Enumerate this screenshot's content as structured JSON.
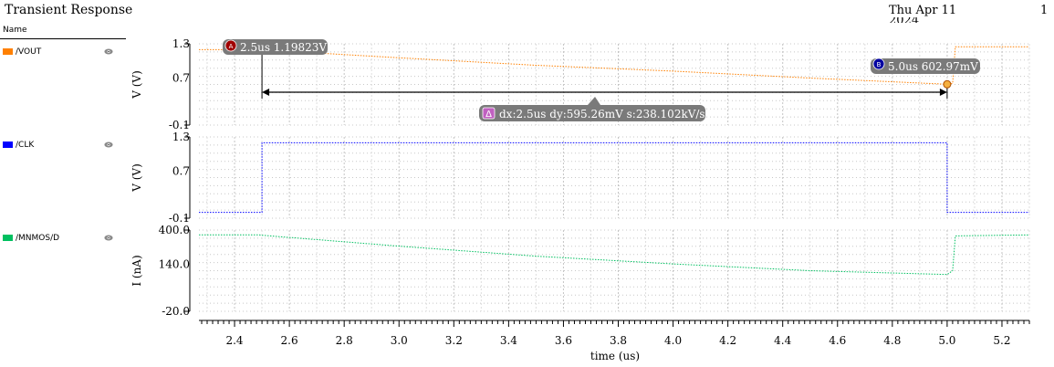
{
  "header": {
    "title": "Transient Response",
    "datetime": "Thu Apr 11 13:14:00",
    "datetime_line2": "2024",
    "page": "1"
  },
  "legend": {
    "header": "Name",
    "icon": "eye-icon",
    "items": [
      {
        "label": "/VOUT",
        "color": "#ff8000"
      },
      {
        "label": "/CLK",
        "color": "#0000ff"
      },
      {
        "label": "/MNMOS/D",
        "color": "#00c060"
      }
    ]
  },
  "chart_data": {
    "type": "line",
    "xlabel": "time (us)",
    "xlim": [
      2.27,
      5.3
    ],
    "x_ticks": [
      "2.4",
      "2.6",
      "2.8",
      "3.0",
      "3.2",
      "3.4",
      "3.6",
      "3.8",
      "4.0",
      "4.2",
      "4.4",
      "4.6",
      "4.8",
      "5.0",
      "5.2"
    ],
    "panels": [
      {
        "name": "/VOUT",
        "color": "#ff8000",
        "ylabel": "V (V)",
        "ylim": [
          -0.1,
          1.3
        ],
        "y_ticks": [
          "1.3",
          "0.7",
          "-0.1"
        ],
        "series": {
          "name": "/VOUT",
          "x": [
            2.27,
            2.49,
            2.5,
            3.0,
            3.5,
            4.0,
            4.5,
            5.0,
            5.02,
            5.03,
            5.3
          ],
          "y": [
            1.2,
            1.2,
            1.198,
            1.06,
            0.93,
            0.83,
            0.71,
            0.603,
            0.62,
            1.25,
            1.25
          ]
        }
      },
      {
        "name": "/CLK",
        "color": "#0000ff",
        "ylabel": "V (V)",
        "ylim": [
          -0.1,
          1.3
        ],
        "y_ticks": [
          "1.3",
          "0.7",
          "-0.1"
        ],
        "series": {
          "name": "/CLK",
          "x": [
            2.27,
            2.5,
            2.5,
            5.0,
            5.0,
            5.3
          ],
          "y": [
            0.0,
            0.0,
            1.2,
            1.2,
            0.0,
            0.0
          ]
        }
      },
      {
        "name": "/MNMOS/D",
        "color": "#00c060",
        "ylabel": "I (nA)",
        "ylim": [
          -20.0,
          400.0
        ],
        "y_ticks": [
          "400.0",
          "140.0",
          "-20.0"
        ],
        "series": {
          "name": "/MNMOS/D",
          "x": [
            2.27,
            2.49,
            2.5,
            3.0,
            3.5,
            4.0,
            4.5,
            5.0,
            5.02,
            5.03,
            5.3
          ],
          "y": [
            375,
            375,
            373,
            317,
            265,
            225,
            190,
            170,
            190,
            370,
            375
          ]
        }
      }
    ],
    "markers": [
      {
        "id": "A",
        "x": 2.5,
        "y": 1.198,
        "label": "2.5us 1.19823V",
        "color": "#a00000"
      },
      {
        "id": "B",
        "x": 5.0,
        "y": 0.603,
        "label": "5.0us 602.97mV",
        "color": "#0000a0"
      }
    ],
    "delta": {
      "symbol": "Δ",
      "label": "dx:2.5us dy:595.26mV s:238.102kV/s"
    }
  }
}
